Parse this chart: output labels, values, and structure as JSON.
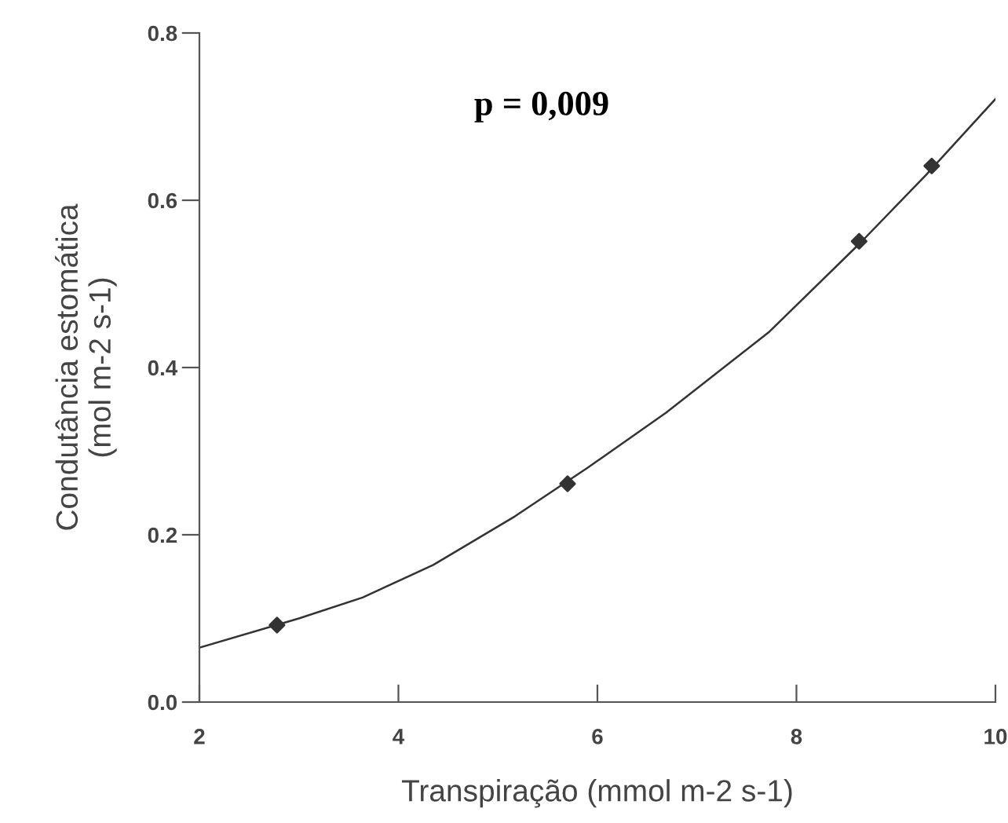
{
  "chart_data": {
    "type": "scatter",
    "xlabel": "Transpiração (mmol m-2 s-1)",
    "ylabel": "Condutância estomática\n(mol m-2 s-1)",
    "annotations": [
      "p = 0,009"
    ],
    "xlim": [
      2,
      10
    ],
    "xticks": [
      2,
      4,
      6,
      8,
      10
    ],
    "ylim": [
      0,
      0.8
    ],
    "yticks": [
      {
        "value": 0,
        "label": "0.0"
      },
      {
        "value": 0.2,
        "label": "0.2"
      },
      {
        "value": 0.4,
        "label": "0.4"
      },
      {
        "value": 0.6,
        "label": "0.6"
      },
      {
        "value": 0.8,
        "label": "0.8"
      }
    ],
    "grid": false,
    "legend": false,
    "series": [
      {
        "color": "#333333",
        "marker": "diamond",
        "x": [
          2.78,
          5.7,
          8.63,
          9.36
        ],
        "values": [
          0.092,
          0.261,
          0.551,
          0.641
        ]
      },
      {
        "type": "line",
        "color": "#333333",
        "marker": "none",
        "line_style": "solid",
        "x": [
          2,
          3.0,
          3.64,
          4.35,
          5.17,
          5.9,
          6.69,
          7.73,
          8.65,
          9.3,
          10
        ],
        "values": [
          0.065,
          0.1,
          0.125,
          0.164,
          0.222,
          0.28,
          0.346,
          0.443,
          0.55,
          0.63,
          0.721
        ]
      }
    ]
  }
}
